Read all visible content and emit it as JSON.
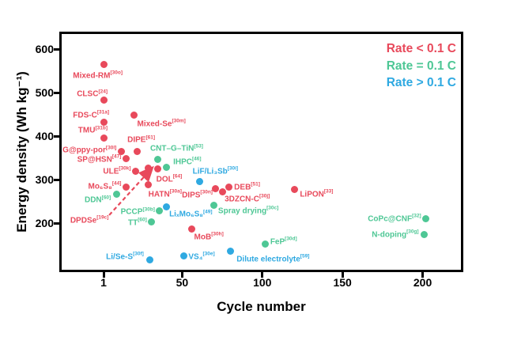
{
  "chart_data": {
    "type": "scatter",
    "title": "",
    "xlabel": "Cycle number",
    "ylabel": "Energy density (Wh kg⁻¹)",
    "x_ticks": [
      1,
      50,
      100,
      150,
      200
    ],
    "y_ticks": [
      600,
      500,
      400,
      300,
      200
    ],
    "xlim": [
      -27,
      225
    ],
    "ylim": [
      88,
      640
    ],
    "grid": false,
    "axis_color": "#000000",
    "legend": {
      "position": "top-right-inside"
    },
    "series": [
      {
        "name": "Rate < 0.1 C",
        "color": "#e8495b",
        "points": [
          {
            "x": 1,
            "y": 565,
            "label": "Mixed-RM",
            "ref": "[30o]",
            "anchor": "end",
            "dx": 24,
            "dy": 15
          },
          {
            "x": 1,
            "y": 483,
            "label": "CLSC",
            "ref": "[24]",
            "anchor": "end",
            "dx": 5,
            "dy": -7
          },
          {
            "x": 1,
            "y": 432,
            "label": "FDS-C",
            "ref": "[31a]",
            "anchor": "end",
            "dx": 7,
            "dy": -9
          },
          {
            "x": 20,
            "y": 449,
            "label": "Mixed-Se",
            "ref": "[30m]",
            "anchor": "start",
            "dx": 4,
            "dy": 12
          },
          {
            "x": 1,
            "y": 396,
            "label": "TMU",
            "ref": "[31b]",
            "anchor": "end",
            "dx": 5,
            "dy": -9
          },
          {
            "x": 22,
            "y": 365,
            "label": "DIPE",
            "ref": "[61]",
            "anchor": "middle",
            "dx": 5,
            "dy": -14
          },
          {
            "x": 12,
            "y": 365,
            "label": "G@ppy-por",
            "ref": "[30l]",
            "anchor": "end",
            "dx": -6,
            "dy": -1
          },
          {
            "x": 15,
            "y": 348,
            "label": "SP@HSN",
            "ref": "[47]",
            "anchor": "end",
            "dx": -6,
            "dy": 1
          },
          {
            "x": 21,
            "y": 320,
            "label": "ULE",
            "ref": "[30k]",
            "anchor": "end",
            "dx": -6,
            "dy": 1
          },
          {
            "x": 15,
            "y": 284,
            "label": "Mo₆S₈",
            "ref": "[44]",
            "anchor": "end",
            "dx": -6,
            "dy": 0
          },
          {
            "x": 35,
            "y": 325,
            "label": "DOL",
            "ref": "[64]",
            "anchor": "middle",
            "dx": 14,
            "dy": 13
          },
          {
            "x": 29,
            "y": 327,
            "label": "",
            "ref": "",
            "anchor": "middle",
            "dx": 0,
            "dy": 0
          },
          {
            "x": 29,
            "y": 288,
            "label": "HATN",
            "ref": "[30a]",
            "anchor": "middle",
            "dx": 21,
            "dy": 12
          },
          {
            "x": 71,
            "y": 280,
            "label": "DIPS",
            "ref": "[30n]",
            "anchor": "end",
            "dx": -4,
            "dy": 9
          },
          {
            "x": 75,
            "y": 272,
            "label": "3DZCN-C",
            "ref": "[30j]",
            "anchor": "start",
            "dx": 3,
            "dy": 9
          },
          {
            "x": 79,
            "y": 283,
            "label": "DEB",
            "ref": "[51]",
            "anchor": "start",
            "dx": 7,
            "dy": 0
          },
          {
            "x": 120,
            "y": 277,
            "label": "LiPON",
            "ref": "[33]",
            "anchor": "start",
            "dx": 7,
            "dy": 6
          },
          {
            "x": 56,
            "y": 187,
            "label": "MoB",
            "ref": "[30h]",
            "anchor": "start",
            "dx": 3,
            "dy": 10
          },
          {
            "x": 5,
            "y": 226,
            "label": "DPDSe",
            "ref": "[19c]",
            "anchor": "middle",
            "dx": -26,
            "dy": 11,
            "no_dot": true
          }
        ]
      },
      {
        "name": "Rate = 0.1 C",
        "color": "#4ec795",
        "points": [
          {
            "x": 35,
            "y": 347,
            "label": "CNT–G–TiN",
            "ref": "[53]",
            "anchor": "start",
            "dx": -10,
            "dy": -13
          },
          {
            "x": 40,
            "y": 328,
            "label": "IHPC",
            "ref": "[46]",
            "anchor": "start",
            "dx": 9,
            "dy": -7
          },
          {
            "x": 9,
            "y": 267,
            "label": "DDN",
            "ref": "[60]",
            "anchor": "end",
            "dx": -7,
            "dy": 8
          },
          {
            "x": 36,
            "y": 229,
            "label": "PCCP",
            "ref": "[30b]",
            "anchor": "end",
            "dx": -6,
            "dy": 2
          },
          {
            "x": 31,
            "y": 204,
            "label": "TT",
            "ref": "[60]",
            "anchor": "end",
            "dx": -6,
            "dy": 2
          },
          {
            "x": 70,
            "y": 241,
            "label": "Spray drying",
            "ref": "[30c]",
            "anchor": "start",
            "dx": 5,
            "dy": 7
          },
          {
            "x": 102,
            "y": 152,
            "label": "FeP",
            "ref": "[30d]",
            "anchor": "start",
            "dx": 6,
            "dy": -3
          },
          {
            "x": 202,
            "y": 210,
            "label": "CoPc@CNF",
            "ref": "[32]",
            "anchor": "end",
            "dx": -6,
            "dy": 0
          },
          {
            "x": 201,
            "y": 174,
            "label": "N-doping",
            "ref": "[30g]",
            "anchor": "end",
            "dx": -7,
            "dy": 0
          }
        ]
      },
      {
        "name": "Rate > 0.1 C",
        "color": "#2fa9e1",
        "points": [
          {
            "x": 61,
            "y": 296,
            "label": "LiF/Li₃Sb",
            "ref": "[30i]",
            "anchor": "start",
            "dx": -9,
            "dy": -13
          },
          {
            "x": 40,
            "y": 238,
            "label": "LiₓMo₆S₈",
            "ref": "[49]",
            "anchor": "start",
            "dx": 4,
            "dy": 10
          },
          {
            "x": 51,
            "y": 125,
            "label": "VS₄",
            "ref": "[30e]",
            "anchor": "start",
            "dx": 6,
            "dy": 1
          },
          {
            "x": 30,
            "y": 117,
            "label": "Li/Se-S",
            "ref": "[30f]",
            "anchor": "end",
            "dx": -8,
            "dy": -3
          },
          {
            "x": 80,
            "y": 136,
            "label": "Dilute electrolyte",
            "ref": "[59]",
            "anchor": "start",
            "dx": 8,
            "dy": 10
          }
        ]
      }
    ],
    "annotations": [
      {
        "type": "trend-arrow",
        "style": "dashed",
        "color": "#e8495b",
        "from": {
          "x": 4.5,
          "y": 219
        },
        "to": {
          "x": 31,
          "y": 326
        }
      }
    ]
  }
}
